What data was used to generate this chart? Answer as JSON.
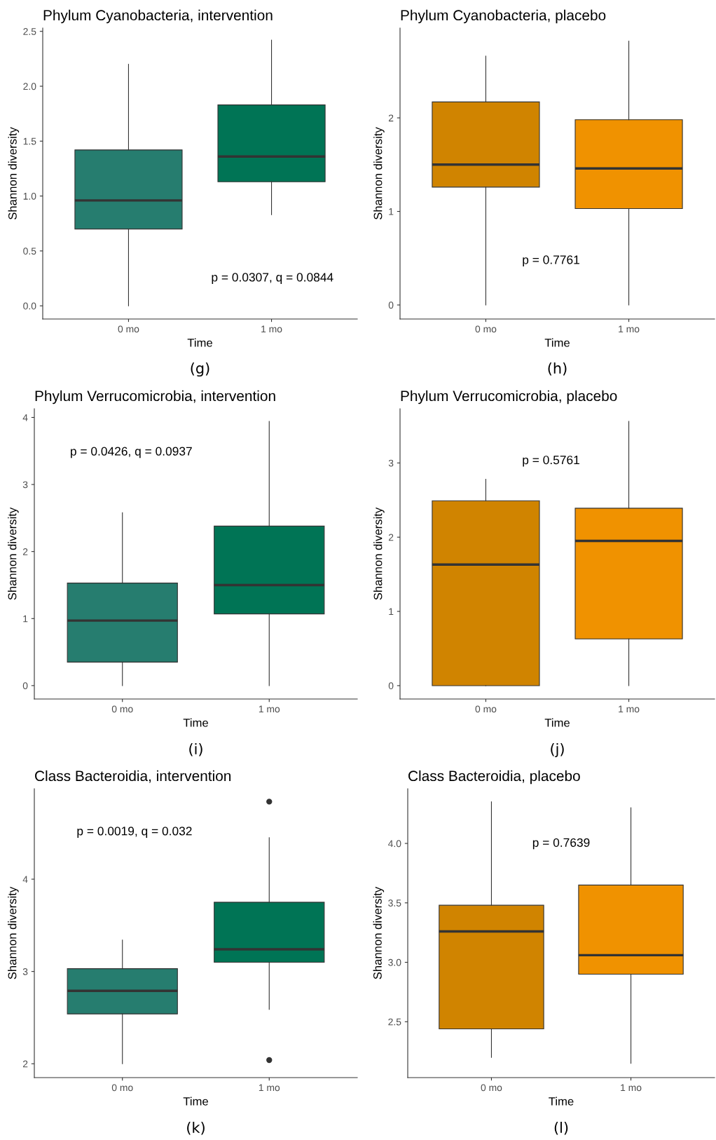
{
  "chart_data": [
    {
      "type": "box",
      "title": "Phylum Cyanobacteria, intervention",
      "xlabel": "Time",
      "ylabel": "Shannon diversity",
      "categories": [
        "0 mo",
        "1 mo"
      ],
      "colors": [
        "#267d6f",
        "#007455"
      ],
      "ylim": [
        -0.12,
        2.53
      ],
      "yticks": [
        {
          "value": 0,
          "label": "0.0"
        },
        {
          "value": 0.5,
          "label": "0.5"
        },
        {
          "value": 1,
          "label": "1.0"
        },
        {
          "value": 1.5,
          "label": "1.5"
        },
        {
          "value": 2,
          "label": "2.0"
        },
        {
          "value": 2.5,
          "label": "2.5"
        }
      ],
      "grid": false,
      "boxes": [
        {
          "low": 0.0,
          "q1": 0.7,
          "median": 0.96,
          "q3": 1.42,
          "high": 2.2
        },
        {
          "low": 0.83,
          "q1": 1.13,
          "median": 1.36,
          "q3": 1.83,
          "high": 2.42
        }
      ],
      "annotations": [
        "p = 0.0307, q = 0.0844",
        "(g)"
      ]
    },
    {
      "type": "box",
      "title": "Phylum Cyanobacteria, placebo",
      "xlabel": "Time",
      "ylabel": "Shannon diversity",
      "categories": [
        "0 mo",
        "1 mo"
      ],
      "colors": [
        "#d08400",
        "#f09200"
      ],
      "ylim": [
        -0.15,
        2.96
      ],
      "yticks": [
        0,
        1,
        2
      ],
      "grid": false,
      "boxes": [
        {
          "low": 0.0,
          "q1": 1.26,
          "median": 1.5,
          "q3": 2.17,
          "high": 2.66
        },
        {
          "low": 0.0,
          "q1": 1.03,
          "median": 1.46,
          "q3": 1.98,
          "high": 2.82
        }
      ],
      "annotations": [
        "p = 0.7761",
        "(h)"
      ]
    },
    {
      "type": "box",
      "title": "Phylum Verrucomicrobia, intervention",
      "xlabel": "Time",
      "ylabel": "Shannon diversity",
      "categories": [
        "0 mo",
        "1 mo"
      ],
      "colors": [
        "#267d6f",
        "#007455"
      ],
      "ylim": [
        -0.2,
        4.13
      ],
      "yticks": [
        0,
        1,
        2,
        3,
        4
      ],
      "grid": false,
      "boxes": [
        {
          "low": 0.0,
          "q1": 0.35,
          "median": 0.97,
          "q3": 1.53,
          "high": 2.58
        },
        {
          "low": 0.0,
          "q1": 1.07,
          "median": 1.5,
          "q3": 2.38,
          "high": 3.94
        }
      ],
      "annotations": [
        "p = 0.0426, q = 0.0937",
        "(i)"
      ]
    },
    {
      "type": "box",
      "title": "Phylum Verrucomicrobia, placebo",
      "xlabel": "Time",
      "ylabel": "Shannon diversity",
      "categories": [
        "0 mo",
        "1 mo"
      ],
      "colors": [
        "#d08400",
        "#f09200"
      ],
      "ylim": [
        -0.18,
        3.73
      ],
      "yticks": [
        0,
        1,
        2,
        3
      ],
      "grid": false,
      "boxes": [
        {
          "low": 0.0,
          "q1": 0.0,
          "median": 1.63,
          "q3": 2.49,
          "high": 2.78
        },
        {
          "low": 0.0,
          "q1": 0.63,
          "median": 1.95,
          "q3": 2.39,
          "high": 3.56
        }
      ],
      "annotations": [
        "p = 0.5761",
        "(j)"
      ]
    },
    {
      "type": "box",
      "title": "Class Bacteroidia, intervention",
      "xlabel": "Time",
      "ylabel": "Shannon diversity",
      "categories": [
        "0 mo",
        "1 mo"
      ],
      "colors": [
        "#267d6f",
        "#007455"
      ],
      "ylim": [
        1.85,
        4.98
      ],
      "yticks": [
        2,
        3,
        4
      ],
      "grid": false,
      "boxes": [
        {
          "low": 2.0,
          "q1": 2.54,
          "median": 2.79,
          "q3": 3.03,
          "high": 3.34
        },
        {
          "low": 2.59,
          "q1": 3.1,
          "median": 3.24,
          "q3": 3.75,
          "high": 4.45,
          "outliers": [
            4.84,
            2.04
          ]
        }
      ],
      "annotations": [
        "p = 0.0019, q = 0.032",
        "(k)"
      ]
    },
    {
      "type": "box",
      "title": "Class Bacteroidia, placebo",
      "xlabel": "Time",
      "ylabel": "Shannon diversity",
      "categories": [
        "0 mo",
        "1 mo"
      ],
      "colors": [
        "#d08400",
        "#f09200"
      ],
      "ylim": [
        2.03,
        4.46
      ],
      "yticks": [
        {
          "value": 2.5,
          "label": "2.5"
        },
        {
          "value": 3,
          "label": "3.0"
        },
        {
          "value": 3.5,
          "label": "3.5"
        },
        {
          "value": 4,
          "label": "4.0"
        }
      ],
      "grid": false,
      "boxes": [
        {
          "low": 2.2,
          "q1": 2.44,
          "median": 3.26,
          "q3": 3.48,
          "high": 4.35
        },
        {
          "low": 2.15,
          "q1": 2.9,
          "median": 3.06,
          "q3": 3.65,
          "high": 4.3
        }
      ],
      "annotations": [
        "p = 0.7639",
        "(l)"
      ]
    }
  ]
}
